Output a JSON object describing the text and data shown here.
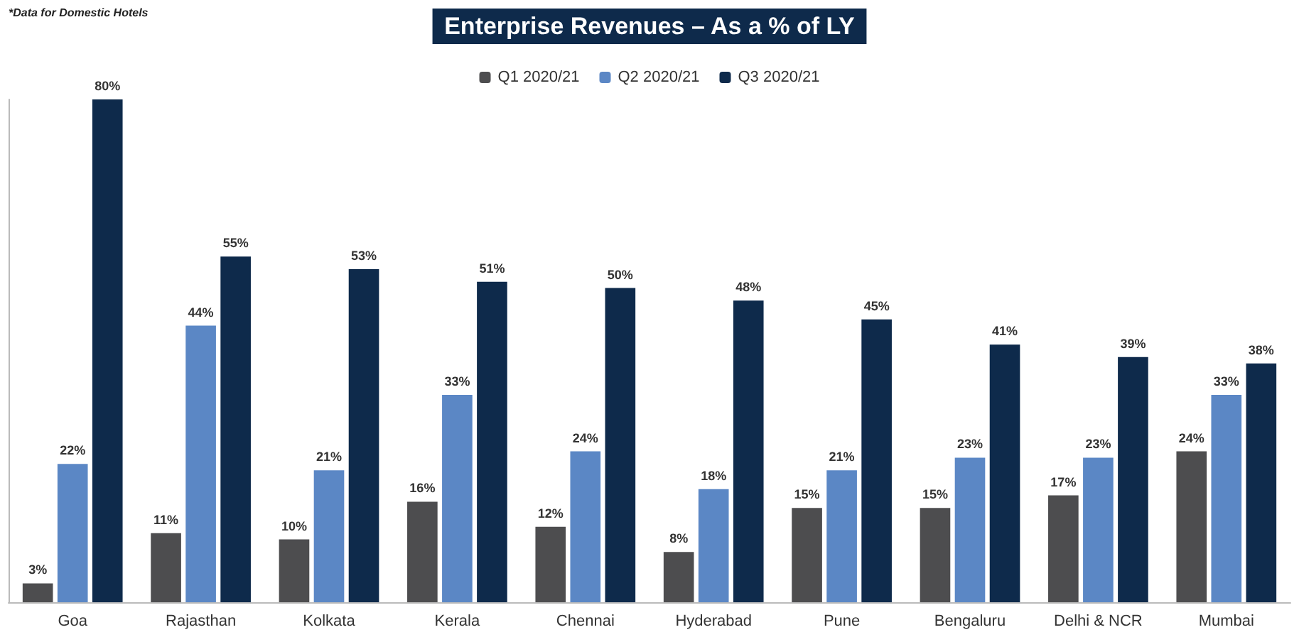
{
  "chart_data": {
    "type": "bar",
    "title": "Enterprise Revenues – As a % of LY",
    "annotations": [
      "*Data for Domestic Hotels"
    ],
    "categories": [
      "Goa",
      "Rajasthan",
      "Kolkata",
      "Kerala",
      "Chennai",
      "Hyderabad",
      "Pune",
      "Bengaluru",
      "Delhi & NCR",
      "Mumbai"
    ],
    "series": [
      {
        "name": "Q1 2020/21",
        "color": "#4d4d4f",
        "values": [
          3,
          11,
          10,
          16,
          12,
          8,
          15,
          15,
          17,
          24
        ],
        "value_labels": [
          "3%",
          "11%",
          "10%",
          "16%",
          "12%",
          "8%",
          "15%",
          "15%",
          "17%",
          "24%"
        ]
      },
      {
        "name": "Q2 2020/21",
        "color": "#5b87c5",
        "values": [
          22,
          44,
          21,
          33,
          24,
          18,
          21,
          23,
          23,
          33
        ],
        "value_labels": [
          "22%",
          "44%",
          "21%",
          "33%",
          "24%",
          "18%",
          "21%",
          "23%",
          "23%",
          "33%"
        ]
      },
      {
        "name": "Q3 2020/21",
        "color": "#0e2a4b",
        "values": [
          80,
          55,
          53,
          51,
          50,
          48,
          45,
          41,
          39,
          38
        ],
        "value_labels": [
          "80%",
          "55%",
          "53%",
          "51%",
          "50%",
          "48%",
          "45%",
          "41%",
          "39%",
          "38%"
        ]
      }
    ],
    "legend": "top",
    "grid": false
  }
}
